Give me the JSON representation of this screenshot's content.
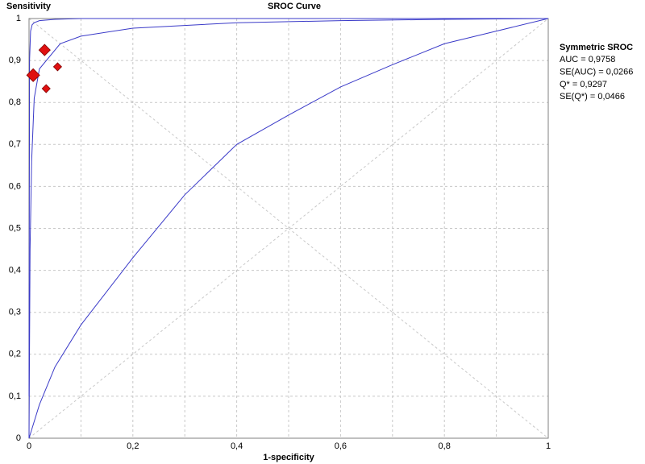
{
  "chart_data": {
    "type": "sroc",
    "title": "SROC Curve",
    "ylabel": "Sensitivity",
    "xlabel": "1-specificity",
    "xlim": [
      0,
      1
    ],
    "ylim": [
      0,
      1
    ],
    "xticks": [
      0,
      {
        "value": 0.2,
        "label": "0,2"
      },
      {
        "value": 0.4,
        "label": "0,4"
      },
      {
        "value": 0.6,
        "label": "0,6"
      },
      {
        "value": 0.8,
        "label": "0,8"
      },
      1
    ],
    "x_minor_ticks": [
      0.1,
      0.3,
      0.5,
      0.7,
      0.9
    ],
    "yticks": [
      0,
      {
        "value": 0.1,
        "label": "0,1"
      },
      {
        "value": 0.2,
        "label": "0,2"
      },
      {
        "value": 0.3,
        "label": "0,3"
      },
      {
        "value": 0.4,
        "label": "0,4"
      },
      {
        "value": 0.5,
        "label": "0,5"
      },
      {
        "value": 0.6,
        "label": "0,6"
      },
      {
        "value": 0.7,
        "label": "0,7"
      },
      {
        "value": 0.8,
        "label": "0,8"
      },
      {
        "value": 0.9,
        "label": "0,9"
      },
      1
    ],
    "grid": true,
    "series": [
      {
        "color": "#3a3ac8",
        "x": [
          0,
          0.002,
          0.005,
          0.01,
          0.02,
          0.06,
          0.1,
          0.2,
          0.4,
          0.6,
          0.8,
          1
        ],
        "values": [
          0,
          0.45,
          0.66,
          0.81,
          0.88,
          0.94,
          0.958,
          0.977,
          0.99,
          0.995,
          0.998,
          1
        ]
      },
      {
        "color": "#3a3ac8",
        "x": [
          0,
          0.001,
          0.003,
          0.006,
          0.01,
          0.02,
          0.05,
          0.1,
          1
        ],
        "values": [
          0.1,
          0.9,
          0.97,
          0.985,
          0.99,
          0.995,
          0.998,
          1,
          1
        ]
      },
      {
        "color": "#3a3ac8",
        "x": [
          0,
          0.02,
          0.05,
          0.1,
          0.2,
          0.3,
          0.4,
          0.5,
          0.6,
          0.7,
          0.8,
          0.9,
          1
        ],
        "values": [
          0,
          0.08,
          0.17,
          0.27,
          0.43,
          0.58,
          0.7,
          0.77,
          0.837,
          0.89,
          0.94,
          0.97,
          1
        ]
      }
    ],
    "points": {
      "color": "#e01010",
      "x": [
        0.03,
        0.008,
        0.055,
        0.033
      ],
      "values": [
        0.925,
        0.865,
        0.885,
        0.833
      ],
      "sizes": [
        7,
        8,
        5,
        5
      ]
    },
    "annotations": [
      "Symmetric SROC",
      "AUC = 0,9758",
      "SE(AUC) = 0,0266",
      "Q* = 0,9297",
      "SE(Q*) = 0,0466"
    ]
  }
}
